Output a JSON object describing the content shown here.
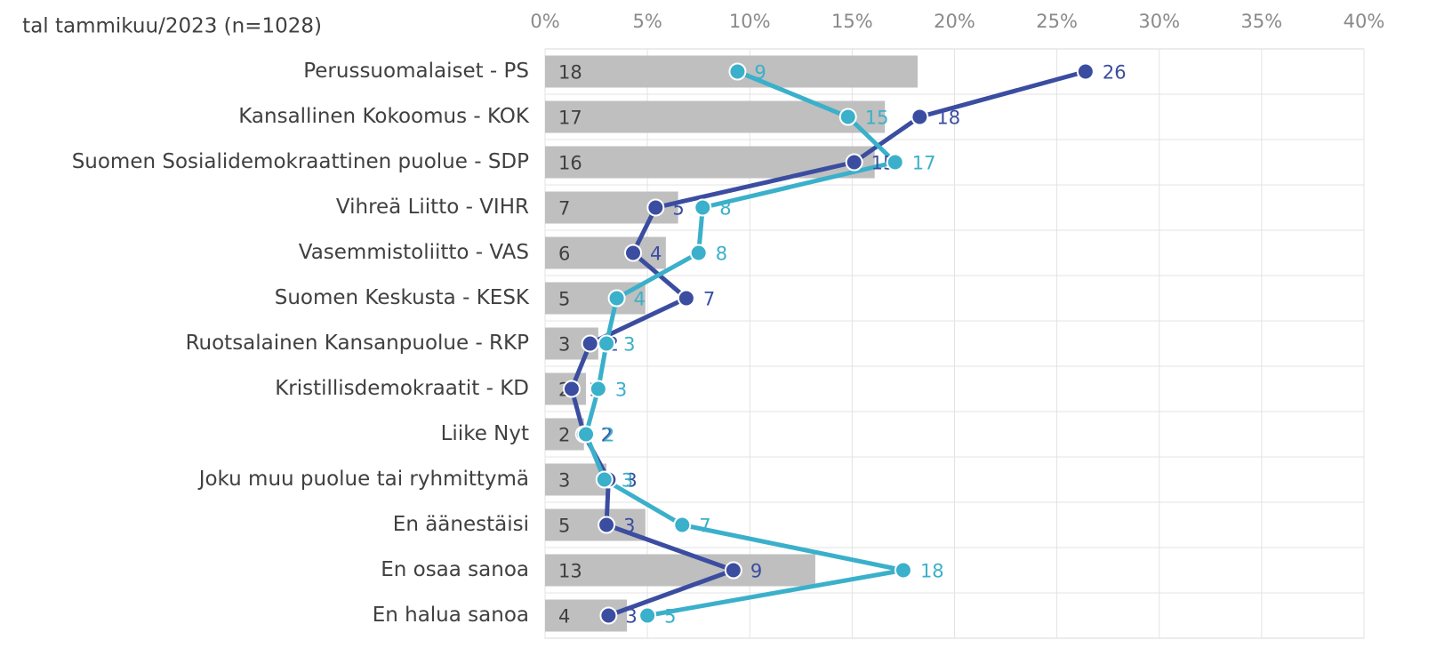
{
  "chart_data": {
    "type": "bar-line",
    "title": "tal tammikuu/2023  (n=1028)",
    "categories": [
      "Perussuomalaiset - PS",
      "Kansallinen Kokoomus - KOK",
      "Suomen Sosialidemokraattinen puolue - SDP",
      "Vihreä Liitto - VIHR",
      "Vasemmistoliitto - VAS",
      "Suomen Keskusta - KESK",
      "Ruotsalainen Kansanpuolue - RKP",
      "Kristillisdemokraatit - KD",
      "Liike Nyt",
      "Joku muu puolue tai ryhmittymä",
      "En äänestäisi",
      "En osaa sanoa",
      "En halua sanoa"
    ],
    "xlim": [
      0,
      40
    ],
    "xticks": [
      {
        "value": 0,
        "label": "0%"
      },
      {
        "value": 5,
        "label": "5%"
      },
      {
        "value": 10,
        "label": "10%"
      },
      {
        "value": 15,
        "label": "15%"
      },
      {
        "value": 20,
        "label": "20%"
      },
      {
        "value": 25,
        "label": "25%"
      },
      {
        "value": 30,
        "label": "30%"
      },
      {
        "value": 35,
        "label": "35%"
      },
      {
        "value": 40,
        "label": "40%"
      }
    ],
    "grid": true,
    "series": [
      {
        "kind": "bar",
        "color": "#bfbfbf",
        "label_color": "#404040",
        "values": [
          18.2,
          16.6,
          16.1,
          6.5,
          5.9,
          4.9,
          2.6,
          2.0,
          1.9,
          3.0,
          4.9,
          13.2,
          4.0
        ],
        "value_labels": [
          "18",
          "17",
          "16",
          "7",
          "6",
          "5",
          "3",
          "2",
          "2",
          "3",
          "5",
          "13",
          "4"
        ]
      },
      {
        "kind": "line",
        "color": "#3b4da0",
        "values": [
          26.4,
          18.3,
          15.1,
          5.4,
          4.3,
          6.9,
          2.2,
          1.3,
          1.9,
          3.1,
          3.0,
          9.2,
          3.1
        ],
        "value_labels": [
          "26",
          "18",
          "15",
          "5",
          "4",
          "7",
          "2",
          "1",
          "2",
          "3",
          "3",
          "9",
          "3"
        ]
      },
      {
        "kind": "line",
        "color": "#3ab0ca",
        "values": [
          9.4,
          14.8,
          17.1,
          7.7,
          7.5,
          3.5,
          3.0,
          2.6,
          2.0,
          2.9,
          6.7,
          17.5,
          5.0
        ],
        "value_labels": [
          "9",
          "15",
          "17",
          "8",
          "8",
          "4",
          "3",
          "3",
          "2",
          "3",
          "7",
          "18",
          "5"
        ]
      }
    ]
  }
}
